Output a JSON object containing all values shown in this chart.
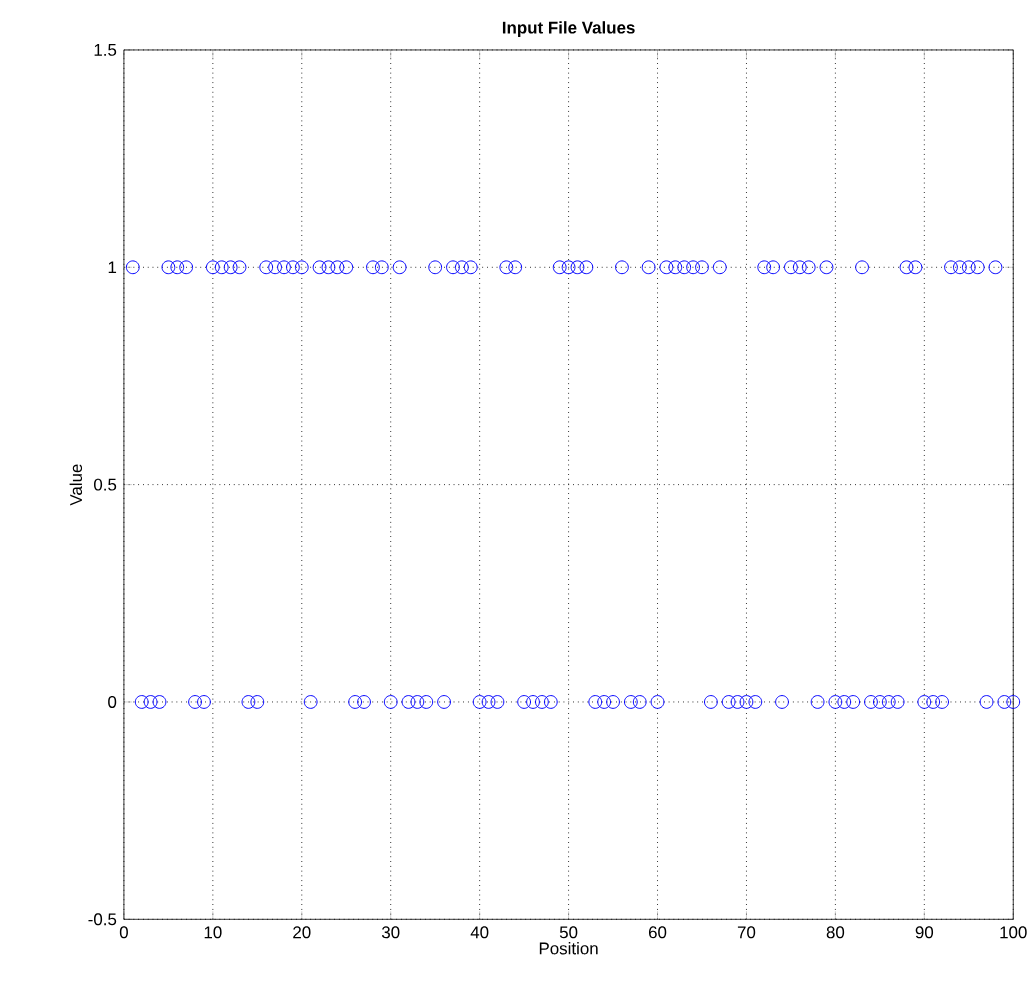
{
  "chart_data": {
    "type": "scatter",
    "title": "Input File Values",
    "xlabel": "Position",
    "ylabel": "Value",
    "x": [
      1,
      2,
      3,
      4,
      5,
      6,
      7,
      8,
      9,
      10,
      11,
      12,
      13,
      14,
      15,
      16,
      17,
      18,
      19,
      20,
      21,
      22,
      23,
      24,
      25,
      26,
      27,
      28,
      29,
      30,
      31,
      32,
      33,
      34,
      35,
      36,
      37,
      38,
      39,
      40,
      41,
      42,
      43,
      44,
      45,
      46,
      47,
      48,
      49,
      50,
      51,
      52,
      53,
      54,
      55,
      56,
      57,
      58,
      59,
      60,
      61,
      62,
      63,
      64,
      65,
      66,
      67,
      68,
      69,
      70,
      71,
      72,
      73,
      74,
      75,
      76,
      77,
      78,
      79,
      80,
      81,
      82,
      83,
      84,
      85,
      86,
      87,
      88,
      89,
      90,
      91,
      92,
      93,
      94,
      95,
      96,
      97,
      98,
      99,
      100
    ],
    "values": [
      1,
      0,
      0,
      0,
      1,
      1,
      1,
      0,
      0,
      1,
      1,
      1,
      1,
      0,
      0,
      1,
      1,
      1,
      1,
      1,
      0,
      1,
      1,
      1,
      1,
      0,
      0,
      1,
      1,
      0,
      1,
      0,
      0,
      0,
      1,
      0,
      1,
      1,
      1,
      0,
      0,
      0,
      1,
      1,
      0,
      0,
      0,
      0,
      1,
      1,
      1,
      1,
      0,
      0,
      0,
      1,
      0,
      0,
      1,
      0,
      1,
      1,
      1,
      1,
      1,
      0,
      1,
      0,
      0,
      0,
      0,
      1,
      1,
      0,
      1,
      1,
      1,
      0,
      1,
      0,
      0,
      0,
      1,
      0,
      0,
      0,
      0,
      1,
      1,
      0,
      0,
      0,
      1,
      1,
      1,
      1,
      0,
      1,
      0,
      0
    ],
    "color": "#0000ff",
    "marker": "circle",
    "grid": true,
    "xlim": [
      0,
      100
    ],
    "xticks": [
      0,
      10,
      20,
      30,
      40,
      50,
      60,
      70,
      80,
      90,
      100
    ],
    "ylim": [
      -0.5,
      1.5
    ],
    "yticks": [
      -0.5,
      0,
      0.5,
      1,
      1.5
    ]
  }
}
